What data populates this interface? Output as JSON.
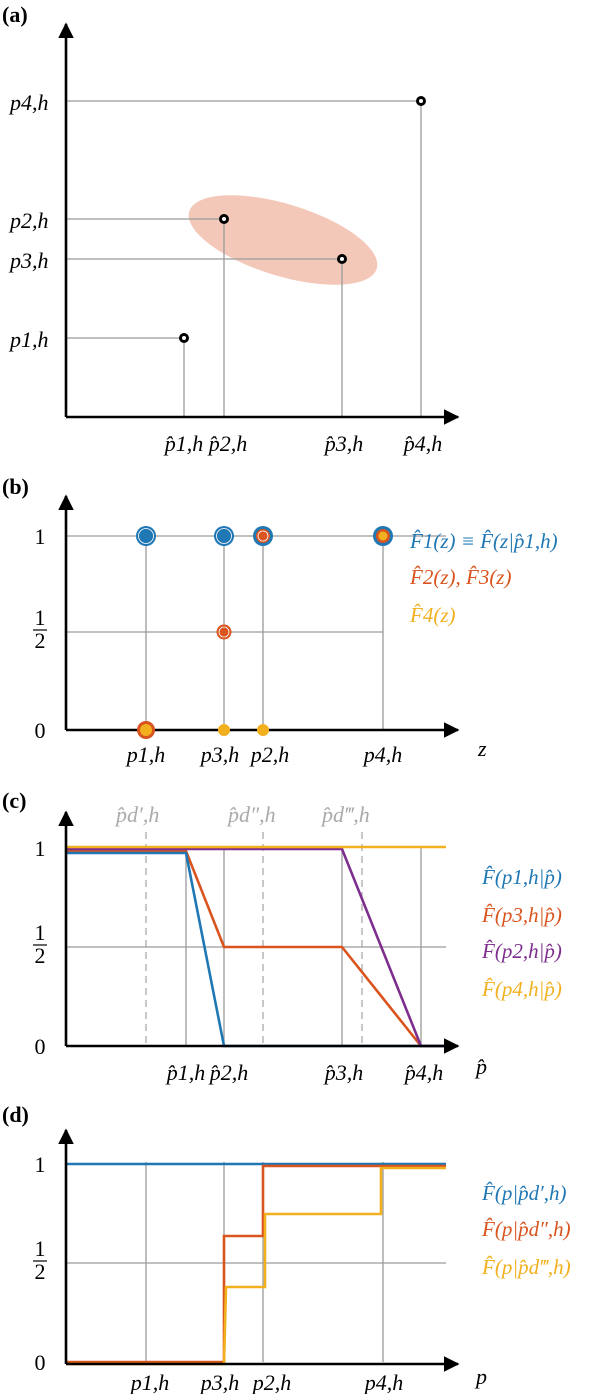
{
  "colors": {
    "blue": "#1f77b4",
    "orange": "#d9541e",
    "yellow": "#f2b01e",
    "purple": "#7e2f8e",
    "ellipse": "#f0b6a2",
    "grid": "#9a9a9a",
    "dashed": "#aaaaaa"
  },
  "chart_data": [
    {
      "panel": "a",
      "label": "(a)",
      "type": "scatter",
      "x_ticks": [
        "p̂1,h",
        "p̂2,h",
        "p̂3,h",
        "p̂4,h"
      ],
      "y_ticks": [
        "p1,h",
        "p2,h",
        "p3,h",
        "p4,h"
      ],
      "points": [
        {
          "x": "p̂1,h",
          "y": "p1,h"
        },
        {
          "x": "p̂2,h",
          "y": "p2,h"
        },
        {
          "x": "p̂3,h",
          "y": "p3,h"
        },
        {
          "x": "p̂4,h",
          "y": "p4,h"
        }
      ],
      "highlight": "ellipse around p̂2,h and p̂3,h points"
    },
    {
      "panel": "b",
      "label": "(b)",
      "type": "scatter",
      "xlabel": "z",
      "x_ticks": [
        "p1,h",
        "p3,h",
        "p2,h",
        "p4,h"
      ],
      "y_ticks": [
        "0",
        "1/2",
        "1"
      ],
      "series": [
        {
          "legend": "F̂1(z) ≡ F̂(z|p̂1,h)",
          "color": "blue",
          "points": [
            [
              "p1,h",
              1
            ],
            [
              "p3,h",
              1
            ],
            [
              "p2,h",
              1
            ],
            [
              "p4,h",
              1
            ]
          ]
        },
        {
          "legend": "F̂2(z), F̂3(z)",
          "color": "orange",
          "points": [
            [
              "p1,h",
              0
            ],
            [
              "p3,h",
              0.5
            ],
            [
              "p2,h",
              1
            ],
            [
              "p4,h",
              1
            ]
          ]
        },
        {
          "legend": "F̂4(z)",
          "color": "yellow",
          "points": [
            [
              "p1,h",
              0
            ],
            [
              "p3,h",
              0
            ],
            [
              "p2,h",
              0
            ],
            [
              "p4,h",
              1
            ]
          ]
        }
      ]
    },
    {
      "panel": "c",
      "label": "(c)",
      "type": "line",
      "xlabel": "p̂",
      "x_ticks": [
        "p̂1,h",
        "p̂2,h",
        "p̂3,h",
        "p̂4,h"
      ],
      "y_ticks": [
        "0",
        "1/2",
        "1"
      ],
      "dashed_labels": [
        "p̂d′,h",
        "p̂d″,h",
        "p̂d‴,h"
      ],
      "series": [
        {
          "legend": "F̂(p1,h|p̂)",
          "color": "blue"
        },
        {
          "legend": "F̂(p3,h|p̂)",
          "color": "orange"
        },
        {
          "legend": "F̂(p2,h|p̂)",
          "color": "purple"
        },
        {
          "legend": "F̂(p4,h|p̂)",
          "color": "yellow"
        }
      ]
    },
    {
      "panel": "d",
      "label": "(d)",
      "type": "line",
      "xlabel": "p",
      "x_ticks": [
        "p1,h",
        "p3,h",
        "p2,h",
        "p4,h"
      ],
      "y_ticks": [
        "0",
        "1/2",
        "1"
      ],
      "series": [
        {
          "legend": "F̂(p|p̂d′,h)",
          "color": "blue"
        },
        {
          "legend": "F̂(p|p̂d″,h)",
          "color": "orange"
        },
        {
          "legend": "F̂(p|p̂d‴,h)",
          "color": "yellow"
        }
      ]
    }
  ]
}
